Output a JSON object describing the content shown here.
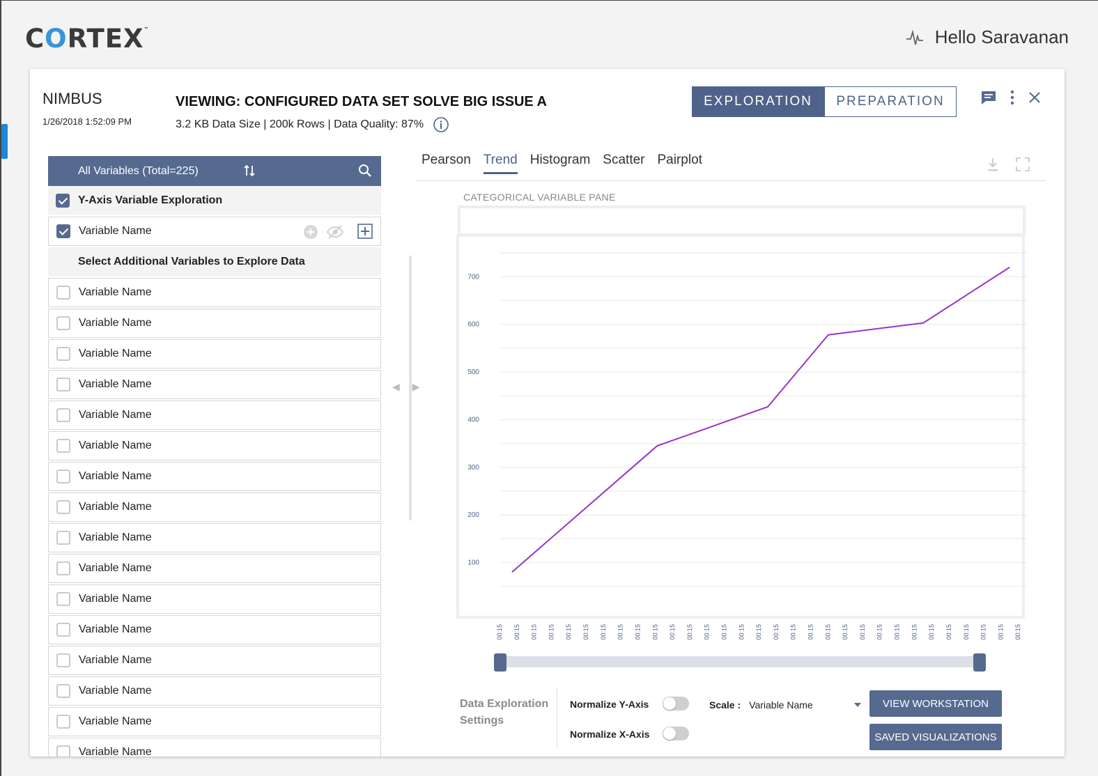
{
  "app": {
    "logo_pre": "C",
    "logo_o": "O",
    "logo_post": "RTEX",
    "logo_tm": "™",
    "greeting": "Hello Saravanan"
  },
  "header": {
    "project": "NIMBUS",
    "timestamp": "1/26/2018 1:52:09 PM",
    "viewing": "VIEWING: CONFIGURED DATA SET SOLVE BIG ISSUE A",
    "meta": "3.2 KB Data Size | 200k Rows | Data Quality: 87%",
    "modes": {
      "exploration": "EXPLORATION",
      "preparation": "PREPARATION"
    }
  },
  "variables": {
    "header": "All Variables (Total=225)",
    "y_axis_section": "Y-Axis Variable Exploration",
    "selected_item": "Variable Name",
    "additional_section": "Select Additional Variables to Explore Data",
    "items": [
      "Variable Name",
      "Variable Name",
      "Variable Name",
      "Variable Name",
      "Variable Name",
      "Variable Name",
      "Variable Name",
      "Variable Name",
      "Variable Name",
      "Variable Name",
      "Variable Name",
      "Variable Name",
      "Variable Name",
      "Variable Name",
      "Variable Name",
      "Variable Name"
    ]
  },
  "tabs": [
    "Pearson",
    "Trend",
    "Histogram",
    "Scatter",
    "Pairplot"
  ],
  "active_tab": "Trend",
  "categorical_pane_label": "CATEGORICAL VARIABLE PANE",
  "chart_data": {
    "type": "line",
    "title": "",
    "xlabel": "",
    "ylabel": "",
    "x": [
      "00:15",
      "00:15",
      "00:15",
      "00:15",
      "00:15",
      "00:15",
      "00:15",
      "00:15",
      "00:15",
      "00:15",
      "00:15",
      "00:15",
      "00:15",
      "00:15",
      "00:15",
      "00:15",
      "00:15",
      "00:15",
      "00:15",
      "00:15",
      "00:15",
      "00:15",
      "00:15",
      "00:15",
      "00:15",
      "00:15",
      "00:15",
      "00:15",
      "00:15",
      "00:15",
      "00:15",
      "00:15"
    ],
    "y_ticks": [
      100,
      200,
      300,
      400,
      500,
      600,
      700
    ],
    "ylim": [
      0,
      775
    ],
    "series": [
      {
        "name": "trend",
        "color": "#9b34c8",
        "points": [
          {
            "x": 0.6,
            "y": 80
          },
          {
            "x": 9.0,
            "y": 345
          },
          {
            "x": 15.4,
            "y": 427
          },
          {
            "x": 18.9,
            "y": 578
          },
          {
            "x": 24.4,
            "y": 603
          },
          {
            "x": 29.4,
            "y": 720
          }
        ]
      }
    ],
    "grid": true
  },
  "settings": {
    "title": "Data Exploration Settings",
    "normalize_y": "Normalize Y-Axis",
    "normalize_x": "Normalize X-Axis",
    "scale_label": "Scale :",
    "scale_value": "Variable Name",
    "view_workstation": "VIEW WORKSTATION",
    "saved_visualizations": "SAVED VISUALIZATIONS"
  }
}
